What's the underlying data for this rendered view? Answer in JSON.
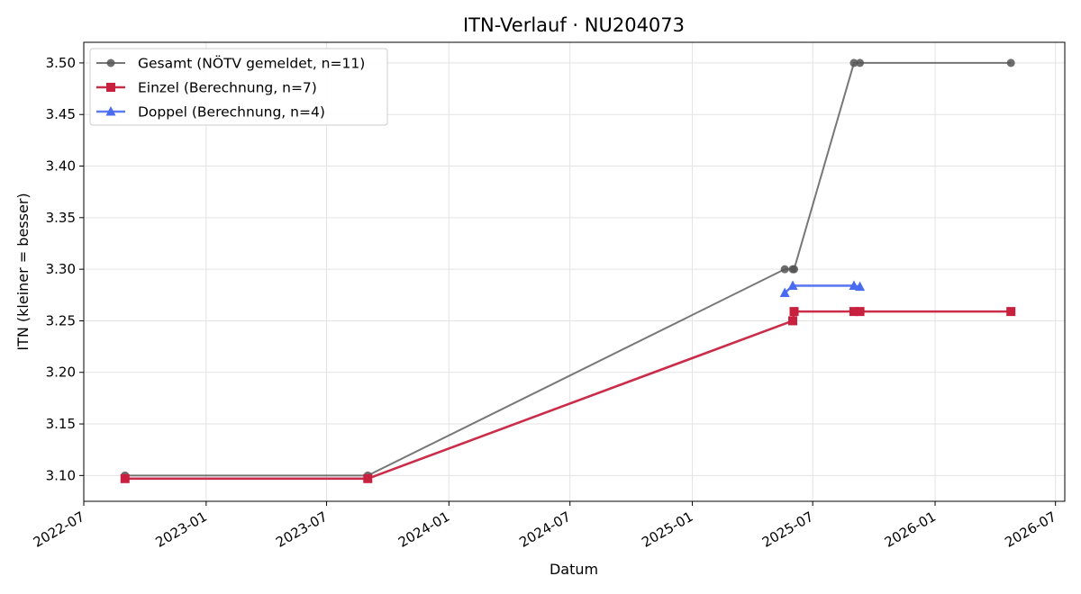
{
  "chart_data": {
    "type": "line",
    "title": "ITN-Verlauf · NU204073",
    "xlabel": "Datum",
    "ylabel": "ITN  (kleiner = besser)",
    "x_axis": "date",
    "xlim": [
      "2022-07-01",
      "2026-07-15"
    ],
    "ylim": [
      3.075,
      3.52
    ],
    "x_ticks": [
      "2022-07",
      "2023-01",
      "2023-07",
      "2024-01",
      "2024-07",
      "2025-01",
      "2025-07",
      "2026-01",
      "2026-07"
    ],
    "y_ticks": [
      "3.10",
      "3.15",
      "3.20",
      "3.25",
      "3.30",
      "3.35",
      "3.40",
      "3.45",
      "3.50"
    ],
    "grid": true,
    "legend_position": "top-left",
    "series": [
      {
        "name": "Gesamt (NÖTV gemeldet, n=11)",
        "color": "#555555",
        "marker": "circle",
        "x": [
          "2022-09-01",
          "2023-09-01",
          "2025-05-20",
          "2025-06-01",
          "2025-06-03",
          "2025-09-01",
          "2025-09-10",
          "2026-04-25"
        ],
        "y": [
          3.1,
          3.1,
          3.3,
          3.3,
          3.3,
          3.5,
          3.5,
          3.5
        ]
      },
      {
        "name": "Einzel (Berechnung, n=7)",
        "color": "#c8213f",
        "marker": "square",
        "x": [
          "2022-09-01",
          "2023-09-01",
          "2025-06-01",
          "2025-06-03",
          "2025-09-01",
          "2025-09-10",
          "2026-04-25"
        ],
        "y": [
          3.097,
          3.097,
          3.25,
          3.259,
          3.259,
          3.259,
          3.259
        ]
      },
      {
        "name": "Doppel (Berechnung, n=4)",
        "color": "#4a6cf0",
        "marker": "triangle",
        "x": [
          "2025-05-20",
          "2025-06-01",
          "2025-09-01",
          "2025-09-10"
        ],
        "y": [
          3.277,
          3.284,
          3.284,
          3.283
        ]
      }
    ]
  }
}
